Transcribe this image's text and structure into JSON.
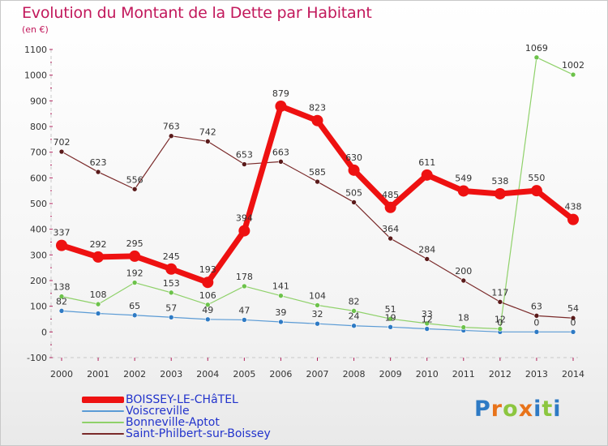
{
  "header": {
    "title": "Evolution du Montant de la Dette par Habitant",
    "unit": "(en €)"
  },
  "logo": {
    "text": "Proxiti",
    "colors": [
      "#2e7ac4",
      "#e8731a",
      "#8cc63f",
      "#e8731a",
      "#2e7ac4",
      "#8cc63f",
      "#2e7ac4"
    ]
  },
  "chart_data": {
    "type": "line",
    "title": "Evolution du Montant de la Dette par Habitant",
    "ylabel": "(en €)",
    "xlabel": "",
    "categories": [
      "2000",
      "2001",
      "2002",
      "2003",
      "2004",
      "2005",
      "2006",
      "2007",
      "2008",
      "2009",
      "2010",
      "2011",
      "2012",
      "2013",
      "2014"
    ],
    "ylim": [
      -100,
      1100
    ],
    "yticks": [
      -100,
      0,
      100,
      200,
      300,
      400,
      500,
      600,
      700,
      800,
      900,
      1000,
      1100
    ],
    "grid": false,
    "legend_position": "bottom-left",
    "series": [
      {
        "name": "BOISSEY-LE-CHâTEL",
        "color": "#ee1111",
        "dot_color": "#ee1111",
        "emphasis": true,
        "values": [
          337,
          292,
          295,
          245,
          193,
          394,
          879,
          823,
          630,
          485,
          611,
          549,
          538,
          550,
          438
        ],
        "labels": [
          "337",
          "292",
          "295",
          "245",
          "193",
          "394",
          "879",
          "823",
          "630",
          "485",
          "611",
          "549",
          "538",
          "550",
          "438"
        ]
      },
      {
        "name": "Voiscreville",
        "color": "#5b9bd5",
        "dot_color": "#2e7ac4",
        "emphasis": false,
        "values": [
          82,
          72,
          65,
          57,
          49,
          47,
          39,
          32,
          24,
          19,
          12,
          6,
          0,
          0,
          0
        ],
        "labels": [
          "82",
          "",
          "65",
          "57",
          "49",
          "47",
          "39",
          "32",
          "24",
          "19",
          "12",
          "",
          "0",
          "0",
          "0"
        ]
      },
      {
        "name": "Bonneville-Aptot",
        "color": "#8fd16a",
        "dot_color": "#6cc24a",
        "emphasis": false,
        "values": [
          138,
          108,
          192,
          153,
          106,
          178,
          141,
          104,
          82,
          51,
          33,
          18,
          12,
          1069,
          1002
        ],
        "labels": [
          "138",
          "108",
          "192",
          "153",
          "106",
          "178",
          "141",
          "104",
          "82",
          "51",
          "33",
          "18",
          "12",
          "1069",
          "1002"
        ]
      },
      {
        "name": "Saint-Philbert-sur-Boissey",
        "color": "#7a2a2a",
        "dot_color": "#5a1a1a",
        "emphasis": false,
        "values": [
          702,
          623,
          556,
          763,
          742,
          653,
          663,
          585,
          505,
          364,
          284,
          200,
          117,
          63,
          54
        ],
        "labels": [
          "702",
          "623",
          "556",
          "763",
          "742",
          "653",
          "663",
          "585",
          "505",
          "364",
          "284",
          "200",
          "117",
          "63",
          "54"
        ]
      }
    ]
  }
}
